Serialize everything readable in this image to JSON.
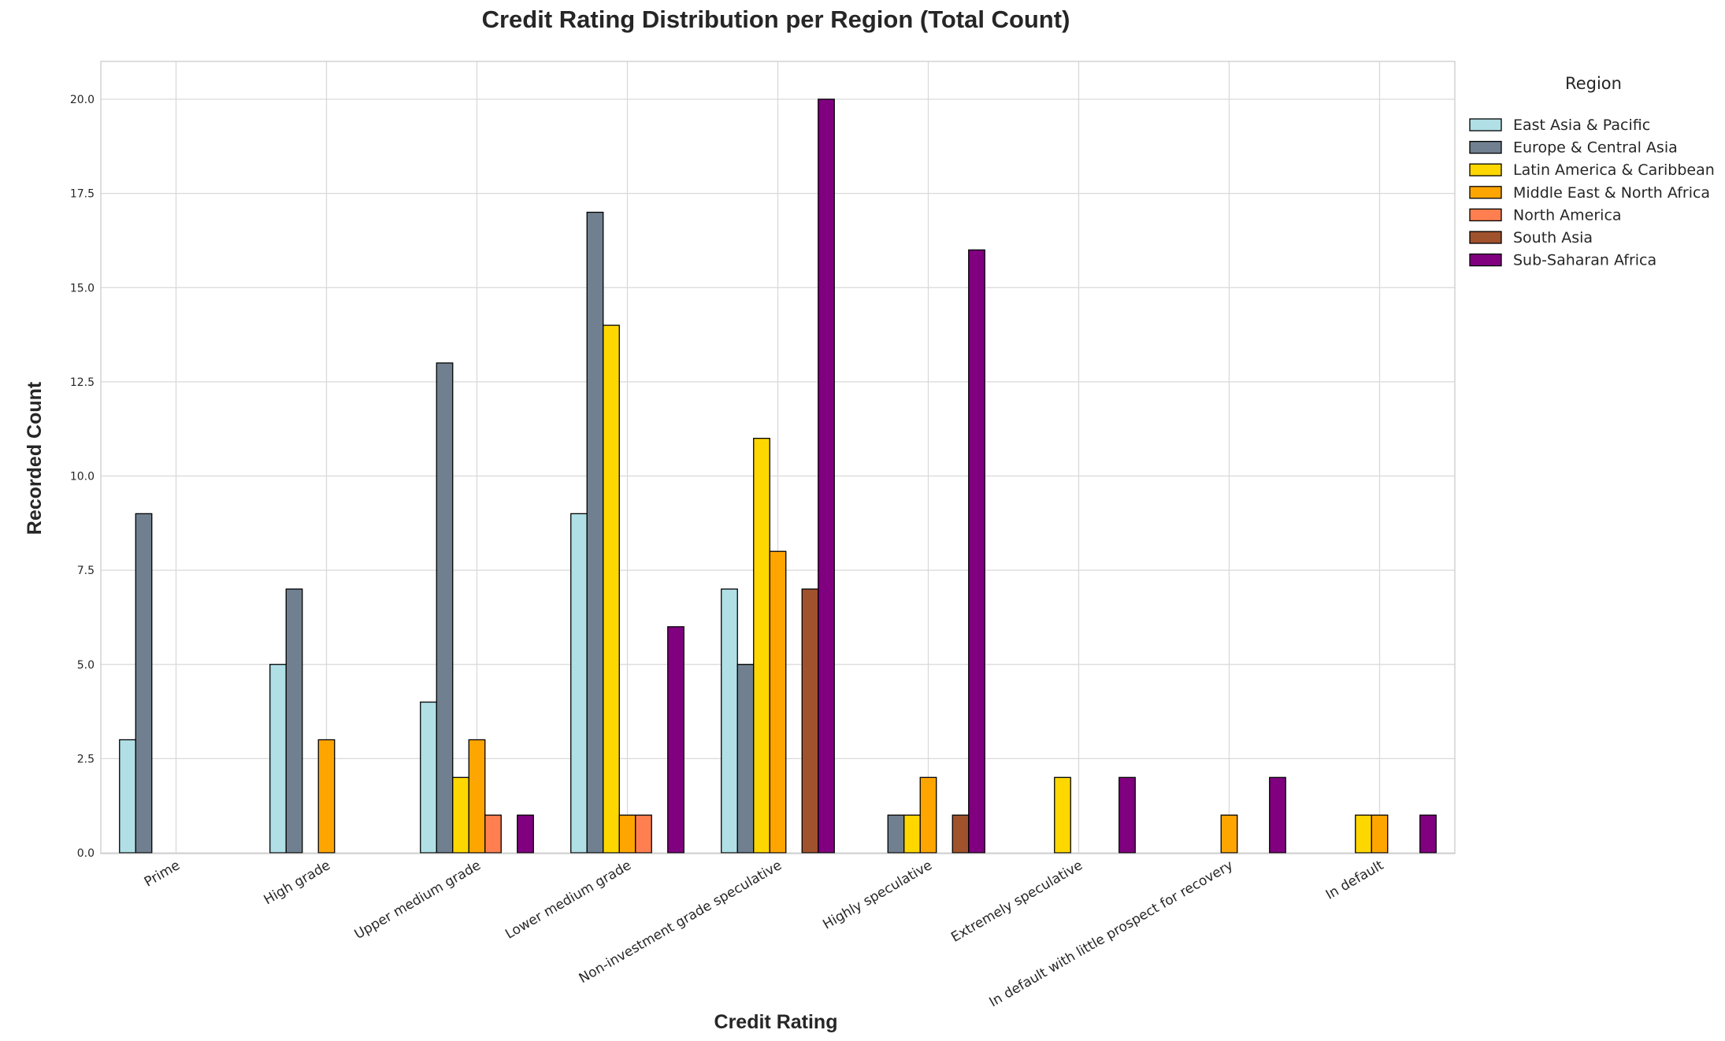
{
  "chart_data": {
    "type": "bar",
    "title": "Credit Rating Distribution per Region (Total Count)",
    "xlabel": "Credit Rating",
    "ylabel": "Recorded Count",
    "ylim": [
      0,
      21
    ],
    "yticks": [
      0.0,
      2.5,
      5.0,
      7.5,
      10.0,
      12.5,
      15.0,
      17.5,
      20.0
    ],
    "grid": true,
    "legend_title": "Region",
    "legend_position": "outside-top-right",
    "categories": [
      "Prime",
      "High grade",
      "Upper medium grade",
      "Lower medium grade",
      "Non-investment grade speculative",
      "Highly speculative",
      "Extremely speculative",
      "In default with little prospect for recovery",
      "In default"
    ],
    "series": [
      {
        "name": "East Asia & Pacific",
        "color": "#b0e0e6",
        "values": [
          3,
          5,
          4,
          9,
          7,
          0,
          0,
          0,
          0
        ]
      },
      {
        "name": "Europe & Central Asia",
        "color": "#708090",
        "values": [
          9,
          7,
          13,
          17,
          5,
          1,
          0,
          0,
          0
        ]
      },
      {
        "name": "Latin America & Caribbean",
        "color": "#ffd700",
        "values": [
          0,
          0,
          2,
          14,
          11,
          1,
          2,
          0,
          1
        ]
      },
      {
        "name": "Middle East & North Africa",
        "color": "#ffa500",
        "values": [
          0,
          3,
          3,
          1,
          8,
          2,
          0,
          1,
          1
        ]
      },
      {
        "name": "North America",
        "color": "#ff7f50",
        "values": [
          0,
          0,
          1,
          1,
          0,
          0,
          0,
          0,
          0
        ]
      },
      {
        "name": "South Asia",
        "color": "#a0522d",
        "values": [
          0,
          0,
          0,
          0,
          7,
          1,
          0,
          0,
          0
        ]
      },
      {
        "name": "Sub-Saharan Africa",
        "color": "#800080",
        "values": [
          0,
          0,
          1,
          6,
          20,
          16,
          2,
          2,
          1
        ]
      }
    ]
  }
}
